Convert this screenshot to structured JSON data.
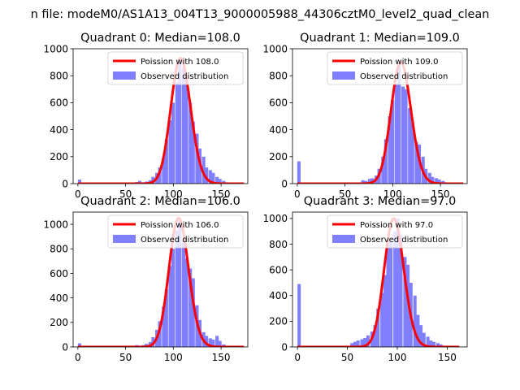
{
  "figure_title": "n file: modeM0/AS1A13_004T13_9000005988_44306cztM0_level2_quad_clean",
  "chart_data": [
    {
      "type": "bar",
      "title": "Quadrant 0: Median=108.0",
      "median": 108.0,
      "xlim": [
        -5,
        178
      ],
      "ylim": [
        0,
        1000
      ],
      "xticks": [
        0,
        50,
        100,
        150
      ],
      "yticks": [
        0,
        200,
        400,
        600,
        800,
        1000
      ],
      "legend_position": "top-right",
      "legend": [
        "Poission with 108.0",
        "Observed distribution"
      ],
      "series": [
        {
          "name": "Poission with 108.0",
          "kind": "line",
          "color": "#ff0000",
          "lambda": 108.0,
          "x_range": [
            0,
            174
          ]
        },
        {
          "name": "Observed distribution",
          "kind": "histogram",
          "color": "#7f7fff",
          "bin_width": 3.5,
          "x": [
            0,
            60,
            63,
            67,
            70,
            74,
            77,
            81,
            84,
            88,
            91,
            95,
            98,
            102,
            105,
            109,
            112,
            116,
            119,
            123,
            126,
            130,
            133,
            137,
            140,
            144,
            147,
            151,
            154
          ],
          "values": [
            30,
            12,
            20,
            10,
            15,
            25,
            50,
            80,
            120,
            190,
            330,
            470,
            600,
            750,
            930,
            860,
            760,
            600,
            460,
            370,
            260,
            200,
            120,
            100,
            80,
            50,
            35,
            20,
            10
          ]
        }
      ]
    },
    {
      "type": "bar",
      "title": "Quadrant 1: Median=109.0",
      "median": 109.0,
      "xlim": [
        -5,
        178
      ],
      "ylim": [
        0,
        1000
      ],
      "xticks": [
        0,
        50,
        100,
        150
      ],
      "yticks": [
        0,
        200,
        400,
        600,
        800,
        1000
      ],
      "legend_position": "top-right",
      "legend": [
        "Poission with 109.0",
        "Observed distribution"
      ],
      "series": [
        {
          "name": "Poission with 109.0",
          "kind": "line",
          "color": "#ff0000",
          "lambda": 109.0,
          "x_range": [
            0,
            174
          ]
        },
        {
          "name": "Observed distribution",
          "kind": "histogram",
          "color": "#7f7fff",
          "bin_width": 3.5,
          "x": [
            0,
            67,
            70,
            74,
            77,
            81,
            84,
            88,
            91,
            95,
            98,
            102,
            105,
            109,
            112,
            116,
            119,
            123,
            126,
            130,
            133,
            137,
            140,
            144,
            147,
            151,
            154
          ],
          "values": [
            165,
            25,
            20,
            35,
            40,
            60,
            110,
            200,
            330,
            500,
            620,
            740,
            900,
            720,
            700,
            560,
            450,
            310,
            290,
            200,
            110,
            80,
            50,
            40,
            30,
            20,
            10
          ]
        }
      ]
    },
    {
      "type": "bar",
      "title": "Quadrant 2: Median=106.0",
      "median": 106.0,
      "xlim": [
        -5,
        178
      ],
      "ylim": [
        0,
        1100
      ],
      "xticks": [
        0,
        50,
        100,
        150
      ],
      "yticks": [
        0,
        200,
        400,
        600,
        800,
        1000
      ],
      "legend_position": "top-right",
      "legend": [
        "Poission with 106.0",
        "Observed distribution"
      ],
      "series": [
        {
          "name": "Poission with 106.0",
          "kind": "line",
          "color": "#ff0000",
          "lambda": 106.0,
          "x_range": [
            0,
            174
          ]
        },
        {
          "name": "Observed distribution",
          "kind": "histogram",
          "color": "#7f7fff",
          "bin_width": 3.5,
          "x": [
            0,
            60,
            63,
            67,
            70,
            74,
            77,
            81,
            84,
            88,
            91,
            95,
            98,
            102,
            105,
            109,
            112,
            116,
            119,
            123,
            126,
            130,
            133,
            137,
            140,
            144,
            147,
            151
          ],
          "values": [
            30,
            15,
            10,
            15,
            25,
            40,
            80,
            140,
            210,
            330,
            470,
            660,
            800,
            950,
            1050,
            860,
            720,
            640,
            560,
            340,
            220,
            120,
            90,
            70,
            60,
            90,
            50,
            20
          ]
        }
      ]
    },
    {
      "type": "bar",
      "title": "Quadrant 3: Median=97.0",
      "median": 97.0,
      "xlim": [
        -5,
        170
      ],
      "ylim": [
        0,
        1050
      ],
      "xticks": [
        0,
        50,
        100,
        150
      ],
      "yticks": [
        0,
        200,
        400,
        600,
        800,
        1000
      ],
      "legend_position": "top-right",
      "legend": [
        "Poission with 97.0",
        "Observed distribution"
      ],
      "series": [
        {
          "name": "Poission with 97.0",
          "kind": "line",
          "color": "#ff0000",
          "lambda": 97.0,
          "x_range": [
            0,
            162
          ]
        },
        {
          "name": "Observed distribution",
          "kind": "histogram",
          "color": "#7f7fff",
          "bin_width": 3.3,
          "x": [
            0,
            53,
            56,
            59,
            63,
            66,
            69,
            73,
            76,
            79,
            83,
            86,
            89,
            92,
            96,
            99,
            102,
            106,
            109,
            112,
            116,
            119,
            122,
            125,
            129,
            132,
            135,
            139,
            142
          ],
          "values": [
            490,
            30,
            40,
            50,
            60,
            70,
            90,
            120,
            170,
            300,
            420,
            560,
            800,
            820,
            900,
            1000,
            870,
            700,
            640,
            500,
            400,
            250,
            170,
            110,
            80,
            50,
            40,
            30,
            20
          ]
        }
      ]
    }
  ]
}
